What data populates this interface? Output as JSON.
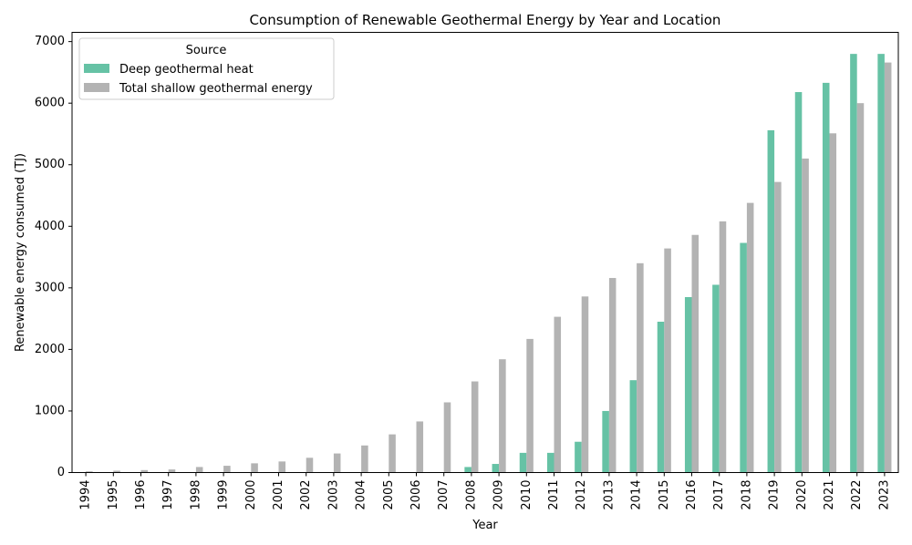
{
  "chart_data": {
    "type": "bar",
    "title": "Consumption of Renewable Geothermal Energy by Year and Location",
    "xlabel": "Year",
    "ylabel": "Renewable energy consumed (TJ)",
    "ylim": [
      0,
      7150
    ],
    "yticks": [
      0,
      1000,
      2000,
      3000,
      4000,
      5000,
      6000,
      7000
    ],
    "grid": false,
    "legend": {
      "title": "Source",
      "placement": "top-left"
    },
    "categories": [
      "1994",
      "1995",
      "1996",
      "1997",
      "1998",
      "1999",
      "2000",
      "2001",
      "2002",
      "2003",
      "2004",
      "2005",
      "2006",
      "2007",
      "2008",
      "2009",
      "2010",
      "2011",
      "2012",
      "2013",
      "2014",
      "2015",
      "2016",
      "2017",
      "2018",
      "2019",
      "2020",
      "2021",
      "2022",
      "2023"
    ],
    "series": [
      {
        "name": "Deep geothermal heat",
        "color": "#66c2a5",
        "values": [
          0,
          0,
          0,
          0,
          0,
          0,
          0,
          0,
          0,
          0,
          0,
          0,
          0,
          0,
          90,
          140,
          320,
          320,
          500,
          1000,
          1500,
          2450,
          2850,
          3050,
          3730,
          5560,
          6180,
          6330,
          6800,
          6800
        ]
      },
      {
        "name": "Total shallow geothermal energy",
        "color": "#b3b3b3",
        "values": [
          20,
          30,
          40,
          50,
          90,
          110,
          150,
          180,
          240,
          310,
          440,
          620,
          830,
          1140,
          1480,
          1840,
          2170,
          2530,
          2860,
          3160,
          3400,
          3640,
          3860,
          4080,
          4380,
          4720,
          5100,
          5510,
          6000,
          6660
        ]
      }
    ]
  }
}
